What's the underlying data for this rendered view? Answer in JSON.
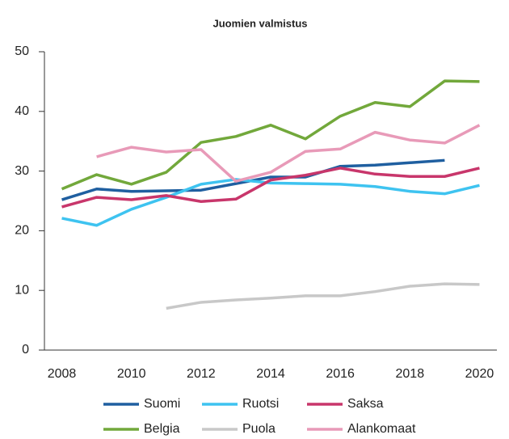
{
  "chart_data": {
    "type": "line",
    "title": "Juomien valmistus",
    "x": [
      2008,
      2009,
      2010,
      2011,
      2012,
      2013,
      2014,
      2015,
      2016,
      2017,
      2018,
      2019,
      2020
    ],
    "xlim": [
      2007.5,
      2020.5
    ],
    "xticks": [
      2008,
      2010,
      2012,
      2014,
      2016,
      2018,
      2020
    ],
    "ylim": [
      0,
      50
    ],
    "yticks": [
      0,
      10,
      20,
      30,
      40,
      50
    ],
    "grid": false,
    "legend": "bottom",
    "series": [
      {
        "name": "Suomi",
        "color": "#1f5fa0",
        "values": [
          25.2,
          27.0,
          26.6,
          26.7,
          26.8,
          27.9,
          29.0,
          29.0,
          30.8,
          31.0,
          31.4,
          31.8,
          null
        ]
      },
      {
        "name": "Ruotsi",
        "color": "#3ec3f0",
        "values": [
          22.1,
          20.9,
          23.6,
          25.6,
          27.8,
          28.6,
          28.0,
          27.9,
          27.8,
          27.4,
          26.6,
          26.2,
          27.6
        ]
      },
      {
        "name": "Saksa",
        "color": "#c8366b",
        "values": [
          24.0,
          25.6,
          25.2,
          25.9,
          24.9,
          25.3,
          28.5,
          29.3,
          30.5,
          29.5,
          29.1,
          29.1,
          30.5
        ]
      },
      {
        "name": "Belgia",
        "color": "#72a83b",
        "values": [
          27.0,
          29.4,
          27.8,
          29.8,
          34.8,
          35.8,
          37.7,
          35.4,
          39.2,
          41.5,
          40.8,
          45.1,
          45.0
        ]
      },
      {
        "name": "Puola",
        "color": "#c8c8c8",
        "values": [
          null,
          null,
          null,
          7.0,
          8.0,
          8.4,
          8.7,
          9.1,
          9.1,
          9.8,
          10.7,
          11.1,
          11.0
        ]
      },
      {
        "name": "Alankomaat",
        "color": "#e89ab8",
        "values": [
          null,
          32.4,
          34.0,
          33.2,
          33.6,
          28.3,
          29.8,
          33.3,
          33.7,
          36.5,
          35.2,
          34.7,
          37.7
        ]
      }
    ]
  }
}
